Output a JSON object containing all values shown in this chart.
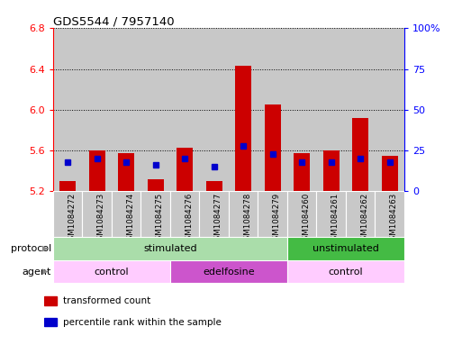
{
  "title": "GDS5544 / 7957140",
  "samples": [
    "GSM1084272",
    "GSM1084273",
    "GSM1084274",
    "GSM1084275",
    "GSM1084276",
    "GSM1084277",
    "GSM1084278",
    "GSM1084279",
    "GSM1084260",
    "GSM1084261",
    "GSM1084262",
    "GSM1084263"
  ],
  "red_values": [
    5.3,
    5.6,
    5.57,
    5.32,
    5.63,
    5.3,
    6.43,
    6.05,
    5.57,
    5.6,
    5.92,
    5.55
  ],
  "blue_values_pct": [
    18,
    20,
    18,
    16,
    20,
    15,
    28,
    23,
    18,
    18,
    20,
    18
  ],
  "ymin": 5.2,
  "ymax": 6.8,
  "yticks_left": [
    5.2,
    5.6,
    6.0,
    6.4,
    6.8
  ],
  "yticks_right": [
    0,
    25,
    50,
    75,
    100
  ],
  "bar_color": "#cc0000",
  "blue_color": "#0000cc",
  "bar_width": 0.55,
  "col_bg_color": "#c8c8c8",
  "protocol_groups": [
    {
      "label": "stimulated",
      "start": 0,
      "end": 8,
      "color": "#aaddaa"
    },
    {
      "label": "unstimulated",
      "start": 8,
      "end": 12,
      "color": "#44bb44"
    }
  ],
  "agent_groups": [
    {
      "label": "control",
      "start": 0,
      "end": 4,
      "color": "#ffccff"
    },
    {
      "label": "edelfosine",
      "start": 4,
      "end": 8,
      "color": "#cc55cc"
    },
    {
      "label": "control",
      "start": 8,
      "end": 12,
      "color": "#ffccff"
    }
  ],
  "legend_items": [
    {
      "label": "transformed count",
      "color": "#cc0000"
    },
    {
      "label": "percentile rank within the sample",
      "color": "#0000cc"
    }
  ]
}
